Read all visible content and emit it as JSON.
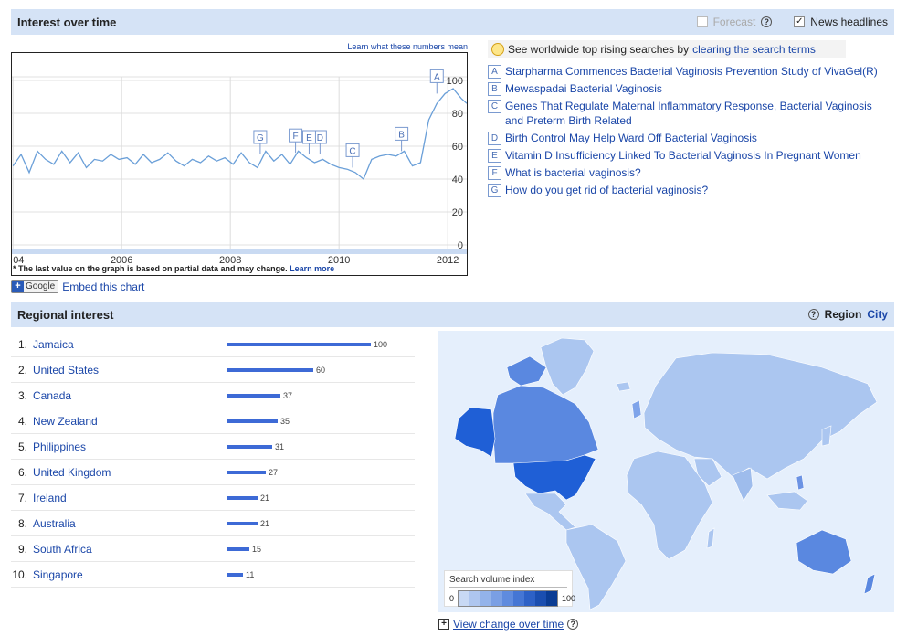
{
  "interest": {
    "title": "Interest over time",
    "forecast_label": "Forecast",
    "forecast_checked": false,
    "news_label": "News headlines",
    "news_checked": true,
    "learn_link": "Learn what these numbers mean",
    "footnote": "* The last value on the graph is based on partial data and may change.",
    "footnote_link": "Learn more",
    "embed_google": "Google",
    "embed_link": "Embed this chart"
  },
  "chart_data": {
    "type": "line",
    "x_ticks": [
      "04",
      "2006",
      "2008",
      "2010",
      "2012"
    ],
    "y_ticks": [
      "0",
      "20",
      "40",
      "60",
      "80",
      "100"
    ],
    "ylim": [
      0,
      100
    ],
    "grid": true,
    "line_color": "#6a9fd8",
    "x": [
      2004.0,
      2004.15,
      2004.3,
      2004.45,
      2004.6,
      2004.75,
      2004.9,
      2005.05,
      2005.2,
      2005.35,
      2005.5,
      2005.65,
      2005.8,
      2005.95,
      2006.1,
      2006.25,
      2006.4,
      2006.55,
      2006.7,
      2006.85,
      2007.0,
      2007.15,
      2007.3,
      2007.45,
      2007.6,
      2007.75,
      2007.9,
      2008.05,
      2008.2,
      2008.35,
      2008.5,
      2008.65,
      2008.8,
      2008.95,
      2009.1,
      2009.25,
      2009.4,
      2009.55,
      2009.7,
      2009.85,
      2010.0,
      2010.15,
      2010.3,
      2010.45,
      2010.6,
      2010.75,
      2010.9,
      2011.05,
      2011.2,
      2011.35,
      2011.5,
      2011.65,
      2011.8,
      2011.95,
      2012.1,
      2012.25,
      2012.35
    ],
    "y": [
      48,
      55,
      44,
      57,
      52,
      49,
      57,
      50,
      56,
      47,
      52,
      51,
      55,
      52,
      53,
      49,
      55,
      50,
      52,
      56,
      51,
      48,
      52,
      50,
      54,
      51,
      53,
      49,
      56,
      50,
      47,
      57,
      51,
      55,
      49,
      57,
      53,
      50,
      52,
      49,
      47,
      46,
      44,
      40,
      52,
      54,
      55,
      54,
      57,
      48,
      50,
      76,
      86,
      92,
      95,
      89,
      86
    ],
    "annotations": [
      {
        "letter": "A",
        "x": 2011.8,
        "y": 92
      },
      {
        "letter": "B",
        "x": 2011.15,
        "y": 57
      },
      {
        "letter": "C",
        "x": 2010.25,
        "y": 47
      },
      {
        "letter": "D",
        "x": 2009.65,
        "y": 55
      },
      {
        "letter": "E",
        "x": 2009.45,
        "y": 55
      },
      {
        "letter": "F",
        "x": 2009.2,
        "y": 56
      },
      {
        "letter": "G",
        "x": 2008.55,
        "y": 55
      }
    ]
  },
  "news": {
    "tip_text": "See worldwide top rising searches by",
    "tip_link": "clearing the search terms",
    "items": [
      {
        "letter": "A",
        "text": "Starpharma Commences Bacterial Vaginosis Prevention Study of VivaGel(R)"
      },
      {
        "letter": "B",
        "text": "Mewaspadai Bacterial Vaginosis"
      },
      {
        "letter": "C",
        "text": "Genes That Regulate Maternal Inflammatory Response, Bacterial Vaginosis and Preterm Birth Related"
      },
      {
        "letter": "D",
        "text": "Birth Control May Help Ward Off Bacterial Vaginosis"
      },
      {
        "letter": "E",
        "text": "Vitamin D Insufficiency Linked To Bacterial Vaginosis In Pregnant Women"
      },
      {
        "letter": "F",
        "text": "What is bacterial vaginosis?"
      },
      {
        "letter": "G",
        "text": "How do you get rid of bacterial vaginosis?"
      }
    ]
  },
  "regional": {
    "title": "Regional interest",
    "region_label": "Region",
    "city_label": "City",
    "rows": [
      {
        "rank": "1.",
        "name": "Jamaica",
        "value": 100
      },
      {
        "rank": "2.",
        "name": "United States",
        "value": 60
      },
      {
        "rank": "3.",
        "name": "Canada",
        "value": 37
      },
      {
        "rank": "4.",
        "name": "New Zealand",
        "value": 35
      },
      {
        "rank": "5.",
        "name": "Philippines",
        "value": 31
      },
      {
        "rank": "6.",
        "name": "United Kingdom",
        "value": 27
      },
      {
        "rank": "7.",
        "name": "Ireland",
        "value": 21
      },
      {
        "rank": "8.",
        "name": "Australia",
        "value": 21
      },
      {
        "rank": "9.",
        "name": "South Africa",
        "value": 15
      },
      {
        "rank": "10.",
        "name": "Singapore",
        "value": 11
      }
    ],
    "legend_title": "Search volume index",
    "legend_min": "0",
    "legend_max": "100",
    "legend_colors": [
      "#c8d9f4",
      "#aec6ef",
      "#93b3ea",
      "#7a9fe4",
      "#5f8bde",
      "#4576d4",
      "#2d61c6",
      "#1a4eb0",
      "#0a3c94"
    ],
    "view_change": "View change over time"
  },
  "colors": {
    "header_bg": "#d5e3f6",
    "link": "#1a46a8",
    "bar": "#3d6ad6",
    "map_water": "#e5effc",
    "map_land": "#abc6f0",
    "map_high": "#1f5fd6"
  }
}
